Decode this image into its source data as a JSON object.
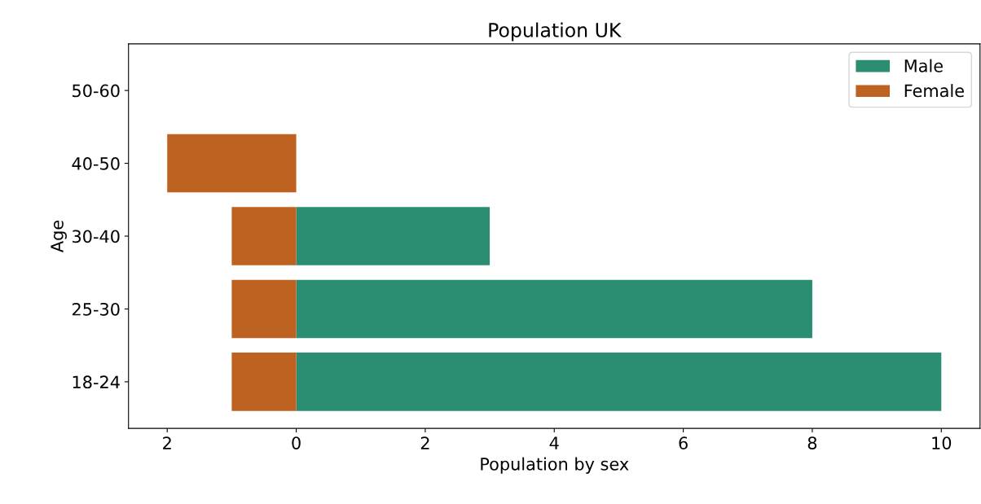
{
  "chart_data": {
    "type": "bar",
    "orientation": "horizontal",
    "stacked": true,
    "title": "Population UK",
    "xlabel": "Population by sex",
    "ylabel": "Age",
    "categories": [
      "50-60",
      "40-50",
      "30-40",
      "25-30",
      "18-24"
    ],
    "series": [
      {
        "name": "Male",
        "color": "#2b8e73",
        "values": [
          0,
          0,
          3,
          8,
          10
        ]
      },
      {
        "name": "Female",
        "color": "#bd6220",
        "values": [
          0,
          -2,
          -1,
          -1,
          -1
        ]
      }
    ],
    "xlim": [
      -2.6,
      10.6
    ],
    "xticks": [
      {
        "value": -2,
        "label": "2"
      },
      0,
      2,
      4,
      6,
      8,
      10
    ],
    "legend": "top right",
    "grid": false
  }
}
